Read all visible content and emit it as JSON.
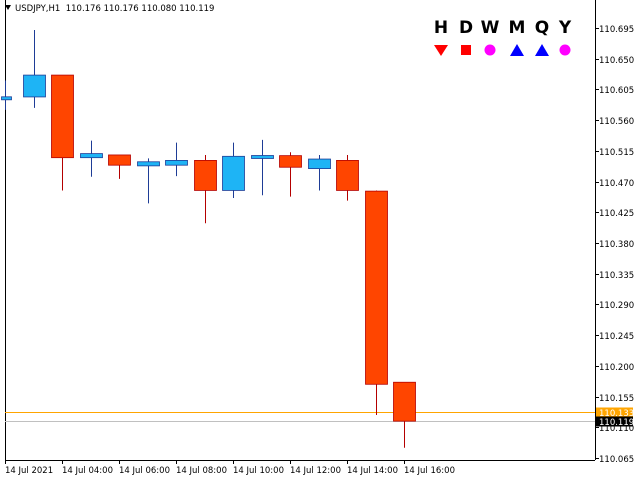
{
  "header": {
    "symbol": "USDJPY,H1",
    "ohlc": "110.176 110.176 110.080 110.119"
  },
  "timeframes": [
    {
      "label": "H",
      "icon": "down-triangle-icon",
      "color": "#ff0000"
    },
    {
      "label": "D",
      "icon": "square-icon",
      "color": "#ff0000"
    },
    {
      "label": "W",
      "icon": "circle-icon",
      "color": "#ff00ff"
    },
    {
      "label": "M",
      "icon": "up-triangle-icon",
      "color": "#0000ff"
    },
    {
      "label": "Q",
      "icon": "up-triangle-icon",
      "color": "#0000ff"
    },
    {
      "label": "Y",
      "icon": "circle-icon",
      "color": "#ff00ff"
    }
  ],
  "colors": {
    "bull": "#1eb4f5",
    "bear": "#ff4500",
    "ask_line": "#ffa500",
    "bid_line": "#c0c0c0"
  },
  "chart_data": {
    "type": "candlestick",
    "symbol": "USDJPY",
    "timeframe": "H1",
    "ylim": [
      110.06,
      110.7
    ],
    "y_ticks": [
      "110.695",
      "110.650",
      "110.605",
      "110.560",
      "110.515",
      "110.470",
      "110.425",
      "110.380",
      "110.335",
      "110.290",
      "110.245",
      "110.200",
      "110.155",
      "110.110",
      "110.065"
    ],
    "x_ticks": [
      "14 Jul 2021",
      "14 Jul 04:00",
      "14 Jul 06:00",
      "14 Jul 08:00",
      "14 Jul 10:00",
      "14 Jul 12:00",
      "14 Jul 14:00",
      "14 Jul 16:00"
    ],
    "candles": [
      {
        "o": 110.592,
        "h": 110.618,
        "l": 110.575,
        "c": 110.592
      },
      {
        "o": 110.594,
        "h": 110.692,
        "l": 110.578,
        "c": 110.626
      },
      {
        "o": 110.626,
        "h": 110.626,
        "l": 110.457,
        "c": 110.505
      },
      {
        "o": 110.505,
        "h": 110.53,
        "l": 110.477,
        "c": 110.511
      },
      {
        "o": 110.509,
        "h": 110.509,
        "l": 110.474,
        "c": 110.494
      },
      {
        "o": 110.493,
        "h": 110.504,
        "l": 110.438,
        "c": 110.499
      },
      {
        "o": 110.494,
        "h": 110.527,
        "l": 110.478,
        "c": 110.501
      },
      {
        "o": 110.501,
        "h": 110.509,
        "l": 110.409,
        "c": 110.457
      },
      {
        "o": 110.457,
        "h": 110.527,
        "l": 110.446,
        "c": 110.507
      },
      {
        "o": 110.506,
        "h": 110.531,
        "l": 110.45,
        "c": 110.506
      },
      {
        "o": 110.508,
        "h": 110.513,
        "l": 110.448,
        "c": 110.491
      },
      {
        "o": 110.489,
        "h": 110.509,
        "l": 110.457,
        "c": 110.503
      },
      {
        "o": 110.501,
        "h": 110.509,
        "l": 110.442,
        "c": 110.457
      },
      {
        "o": 110.456,
        "h": 110.457,
        "l": 110.128,
        "c": 110.173
      },
      {
        "o": 110.176,
        "h": 110.176,
        "l": 110.08,
        "c": 110.119
      }
    ],
    "ask_price": "110.133",
    "bid_price": "110.119",
    "grid": false
  }
}
